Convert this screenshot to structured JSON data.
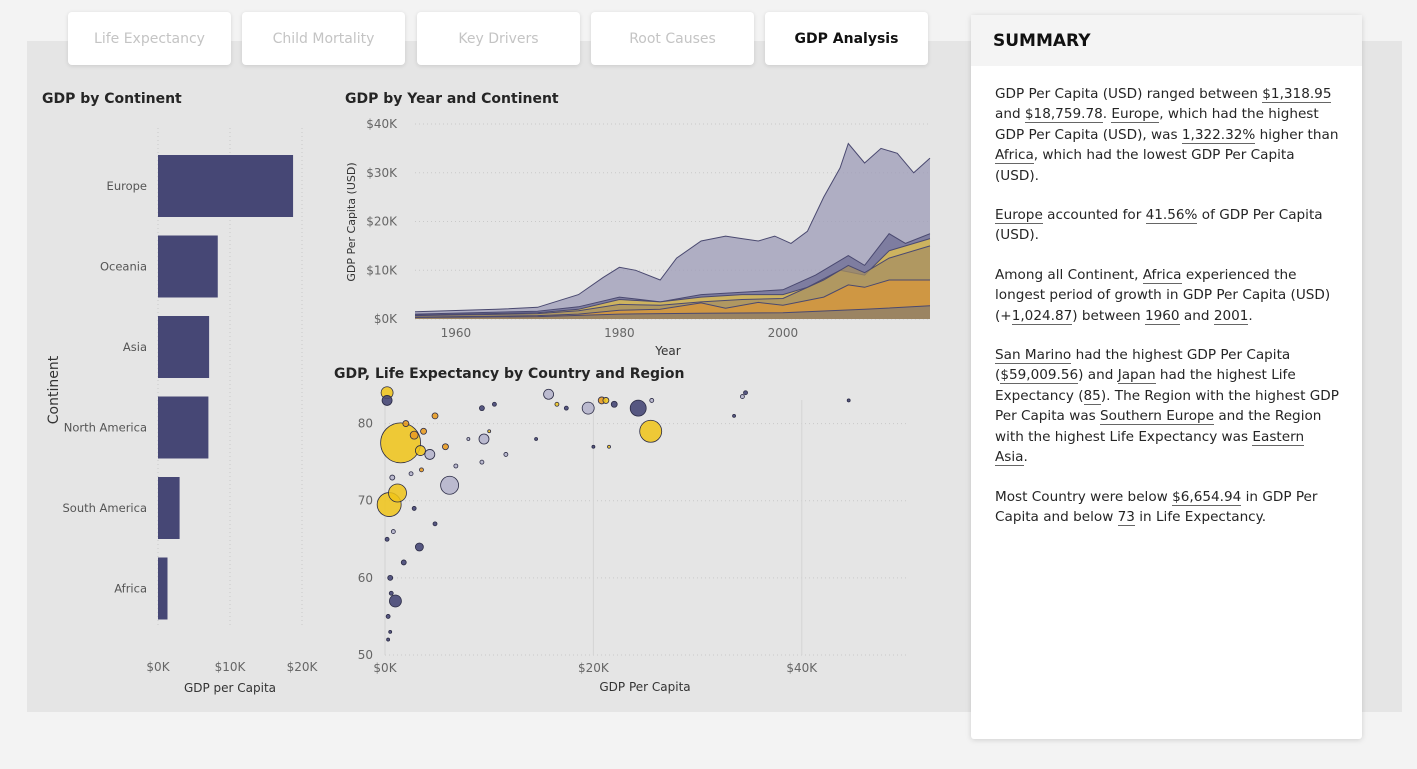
{
  "tabs": [
    {
      "label": "Life Expectancy",
      "active": false
    },
    {
      "label": "Child Mortality",
      "active": false
    },
    {
      "label": "Key Drivers",
      "active": false
    },
    {
      "label": "Root Causes",
      "active": false
    },
    {
      "label": "GDP Analysis",
      "active": true
    }
  ],
  "colors": {
    "navy": "#464775",
    "lavender": "#9c9bb7",
    "yellow": "#f0c418",
    "orange": "#e89c24",
    "tan": "#c29a4e",
    "panel": "#e5e5e5"
  },
  "summary": {
    "title": "SUMMARY",
    "p1": {
      "t1": "GDP Per Capita (USD) ranged between ",
      "v1": "$1,318.95",
      "t2": " and ",
      "v2": "$18,759.78",
      "t3": ". ",
      "v3": "Europe",
      "t4": ", which had the highest GDP Per Capita (USD), was ",
      "v4": "1,322.32%",
      "t5": " higher than ",
      "v5": "Africa",
      "t6": ", which had the lowest GDP Per Capita (USD)."
    },
    "p2": {
      "v1": "Europe",
      "t1": " accounted for ",
      "v2": "41.56%",
      "t2": " of GDP Per Capita (USD)."
    },
    "p3": {
      "t1": "Among all Continent, ",
      "v1": "Africa",
      "t2": " experienced the longest period of growth in GDP Per Capita (USD) (+",
      "v2": "1,024.87",
      "t3": ") between ",
      "v3": "1960",
      "t4": " and ",
      "v4": "2001",
      "t5": "."
    },
    "p4": {
      "v1": "San Marino",
      "t1": " had the highest GDP Per Capita (",
      "v2": "$59,009.56",
      "t2": ") and ",
      "v3": "Japan",
      "t3": " had the highest Life Expectancy (",
      "v4": "85",
      "t4": "). The Region with the highest GDP Per Capita was ",
      "v5": "Southern Europe",
      "t5": " and the Region with the highest Life Expectancy was ",
      "v6": "Eastern Asia",
      "t6": "."
    },
    "p5": {
      "t1": "Most Country were below ",
      "v1": "$6,654.94",
      "t2": " in GDP Per Capita and below ",
      "v2": "73",
      "t3": " in Life Expectancy."
    }
  },
  "chart_data": [
    {
      "type": "bar",
      "title": "GDP by Continent",
      "orientation": "horizontal",
      "categories": [
        "Europe",
        "Oceania",
        "Asia",
        "North America",
        "South America",
        "Africa"
      ],
      "values": [
        18760,
        8300,
        7100,
        7000,
        3000,
        1319
      ],
      "xlabel": "GDP per Capita",
      "ylabel": "Continent",
      "xlim": [
        0,
        20000
      ],
      "xticks": [
        "$0K",
        "$10K",
        "$20K"
      ],
      "color": "#464775"
    },
    {
      "type": "area",
      "title": "GDP by Year and Continent",
      "xlabel": "Year",
      "ylabel": "GDP Per Capita (USD)",
      "ylim": [
        0,
        40000
      ],
      "xlim": [
        1955,
        2018
      ],
      "xticks": [
        1960,
        1980,
        2000
      ],
      "yticks": [
        "$0K",
        "$10K",
        "$20K",
        "$30K",
        "$40K"
      ],
      "series": [
        {
          "color": "#9c9bb7",
          "points": [
            [
              1955,
              1500
            ],
            [
              1965,
              2000
            ],
            [
              1970,
              2400
            ],
            [
              1975,
              5000
            ],
            [
              1978,
              8500
            ],
            [
              1980,
              10600
            ],
            [
              1982,
              10000
            ],
            [
              1985,
              8000
            ],
            [
              1987,
              12500
            ],
            [
              1990,
              16000
            ],
            [
              1993,
              17000
            ],
            [
              1995,
              16500
            ],
            [
              1997,
              16000
            ],
            [
              1999,
              17000
            ],
            [
              2001,
              15500
            ],
            [
              2003,
              18000
            ],
            [
              2005,
              25000
            ],
            [
              2007,
              31000
            ],
            [
              2008,
              36000
            ],
            [
              2010,
              32000
            ],
            [
              2012,
              35000
            ],
            [
              2014,
              34000
            ],
            [
              2016,
              30000
            ],
            [
              2018,
              33000
            ]
          ]
        },
        {
          "color": "#6d6c94",
          "points": [
            [
              1955,
              1000
            ],
            [
              1970,
              1600
            ],
            [
              1975,
              2500
            ],
            [
              1980,
              4500
            ],
            [
              1985,
              3500
            ],
            [
              1990,
              5000
            ],
            [
              1995,
              5500
            ],
            [
              2000,
              6000
            ],
            [
              2004,
              9000
            ],
            [
              2008,
              13000
            ],
            [
              2010,
              11000
            ],
            [
              2013,
              17500
            ],
            [
              2015,
              15500
            ],
            [
              2018,
              17500
            ]
          ]
        },
        {
          "color": "#e8c54a",
          "points": [
            [
              1955,
              800
            ],
            [
              1970,
              1300
            ],
            [
              1975,
              2000
            ],
            [
              1980,
              4000
            ],
            [
              1985,
              3500
            ],
            [
              1990,
              4500
            ],
            [
              1995,
              5000
            ],
            [
              2000,
              5000
            ],
            [
              2003,
              6500
            ],
            [
              2007,
              10000
            ],
            [
              2010,
              9000
            ],
            [
              2013,
              14000
            ],
            [
              2018,
              16500
            ]
          ]
        },
        {
          "color": "#a68f62",
          "points": [
            [
              1955,
              700
            ],
            [
              1970,
              1100
            ],
            [
              1975,
              1700
            ],
            [
              1980,
              3000
            ],
            [
              1985,
              2800
            ],
            [
              1990,
              3500
            ],
            [
              1995,
              4000
            ],
            [
              2000,
              4200
            ],
            [
              2005,
              8000
            ],
            [
              2008,
              11000
            ],
            [
              2010,
              9500
            ],
            [
              2013,
              12500
            ],
            [
              2018,
              15000
            ]
          ]
        },
        {
          "color": "#d9973a",
          "points": [
            [
              1955,
              400
            ],
            [
              1970,
              700
            ],
            [
              1975,
              1000
            ],
            [
              1980,
              1800
            ],
            [
              1985,
              2000
            ],
            [
              1990,
              3300
            ],
            [
              1993,
              2200
            ],
            [
              1997,
              3400
            ],
            [
              2000,
              2800
            ],
            [
              2005,
              4500
            ],
            [
              2008,
              7000
            ],
            [
              2010,
              6500
            ],
            [
              2013,
              8000
            ],
            [
              2018,
              8000
            ]
          ]
        },
        {
          "color": "#8a7e6c",
          "points": [
            [
              1955,
              300
            ],
            [
              1970,
              500
            ],
            [
              1980,
              1000
            ],
            [
              1990,
              1200
            ],
            [
              2000,
              1300
            ],
            [
              2010,
              2000
            ],
            [
              2018,
              2700
            ]
          ]
        }
      ]
    },
    {
      "type": "scatter",
      "title": "GDP, Life Expectancy by Country and Region",
      "xlabel": "GDP Per Capita",
      "ylabel": "",
      "xlim": [
        0,
        50000
      ],
      "ylim": [
        50,
        85
      ],
      "xticks": [
        "$0K",
        "$20K",
        "$40K"
      ],
      "yticks": [
        50,
        60,
        70,
        80
      ],
      "points": [
        {
          "x": 1500,
          "y": 77.5,
          "r": 20,
          "c": "y"
        },
        {
          "x": 400,
          "y": 69.5,
          "r": 12,
          "c": "y"
        },
        {
          "x": 1200,
          "y": 71,
          "r": 9,
          "c": "y"
        },
        {
          "x": 6200,
          "y": 72,
          "r": 9,
          "c": "l"
        },
        {
          "x": 25500,
          "y": 79,
          "r": 11,
          "c": "y"
        },
        {
          "x": 24300,
          "y": 82,
          "r": 8,
          "c": "n"
        },
        {
          "x": 19500,
          "y": 82,
          "r": 6,
          "c": "l"
        },
        {
          "x": 15700,
          "y": 83.8,
          "r": 5,
          "c": "l"
        },
        {
          "x": 22000,
          "y": 82.5,
          "r": 3,
          "c": "n"
        },
        {
          "x": 1000,
          "y": 57,
          "r": 6,
          "c": "n"
        },
        {
          "x": 3300,
          "y": 64,
          "r": 4,
          "c": "n"
        },
        {
          "x": 9500,
          "y": 78,
          "r": 5,
          "c": "l"
        },
        {
          "x": 3400,
          "y": 76.5,
          "r": 5,
          "c": "y"
        },
        {
          "x": 4300,
          "y": 76,
          "r": 5,
          "c": "l"
        },
        {
          "x": 200,
          "y": 83,
          "r": 5,
          "c": "n"
        },
        {
          "x": 200,
          "y": 84,
          "r": 6,
          "c": "y"
        },
        {
          "x": 2800,
          "y": 78.5,
          "r": 4,
          "c": "o"
        },
        {
          "x": 5800,
          "y": 77,
          "r": 3,
          "c": "o"
        },
        {
          "x": 2000,
          "y": 80,
          "r": 3,
          "c": "o"
        },
        {
          "x": 4800,
          "y": 81,
          "r": 3,
          "c": "o"
        },
        {
          "x": 3700,
          "y": 79,
          "r": 3,
          "c": "o"
        },
        {
          "x": 11600,
          "y": 76,
          "r": 2,
          "c": "l"
        },
        {
          "x": 10500,
          "y": 82.5,
          "r": 2,
          "c": "n"
        },
        {
          "x": 9300,
          "y": 82,
          "r": 2.5,
          "c": "n"
        },
        {
          "x": 34300,
          "y": 83.5,
          "r": 2,
          "c": "l"
        },
        {
          "x": 34600,
          "y": 84,
          "r": 2,
          "c": "n"
        },
        {
          "x": 44500,
          "y": 83,
          "r": 1.5,
          "c": "n"
        },
        {
          "x": 33500,
          "y": 81,
          "r": 1.5,
          "c": "n"
        },
        {
          "x": 20000,
          "y": 77,
          "r": 1.5,
          "c": "n"
        },
        {
          "x": 21500,
          "y": 77,
          "r": 1.5,
          "c": "y"
        },
        {
          "x": 17400,
          "y": 82,
          "r": 2,
          "c": "n"
        },
        {
          "x": 16500,
          "y": 82.5,
          "r": 2,
          "c": "y"
        },
        {
          "x": 20800,
          "y": 83,
          "r": 3.5,
          "c": "o"
        },
        {
          "x": 21200,
          "y": 83,
          "r": 3,
          "c": "y"
        },
        {
          "x": 25600,
          "y": 83,
          "r": 2,
          "c": "l"
        },
        {
          "x": 14500,
          "y": 78,
          "r": 1.5,
          "c": "n"
        },
        {
          "x": 8000,
          "y": 78,
          "r": 1.5,
          "c": "l"
        },
        {
          "x": 4800,
          "y": 67,
          "r": 2,
          "c": "n"
        },
        {
          "x": 2800,
          "y": 69,
          "r": 2,
          "c": "n"
        },
        {
          "x": 1800,
          "y": 62,
          "r": 2.5,
          "c": "n"
        },
        {
          "x": 500,
          "y": 60,
          "r": 2.5,
          "c": "n"
        },
        {
          "x": 600,
          "y": 58,
          "r": 2,
          "c": "n"
        },
        {
          "x": 300,
          "y": 55,
          "r": 2,
          "c": "n"
        },
        {
          "x": 200,
          "y": 65,
          "r": 2,
          "c": "n"
        },
        {
          "x": 800,
          "y": 66,
          "r": 2,
          "c": "l"
        },
        {
          "x": 700,
          "y": 73,
          "r": 2.5,
          "c": "l"
        },
        {
          "x": 2500,
          "y": 73.5,
          "r": 2,
          "c": "l"
        },
        {
          "x": 3500,
          "y": 74,
          "r": 2,
          "c": "o"
        },
        {
          "x": 500,
          "y": 53,
          "r": 1.5,
          "c": "n"
        },
        {
          "x": 300,
          "y": 52,
          "r": 1.5,
          "c": "n"
        },
        {
          "x": 6800,
          "y": 74.5,
          "r": 2,
          "c": "l"
        },
        {
          "x": 9300,
          "y": 75,
          "r": 2,
          "c": "l"
        },
        {
          "x": 10000,
          "y": 79,
          "r": 1.5,
          "c": "y"
        }
      ]
    }
  ]
}
